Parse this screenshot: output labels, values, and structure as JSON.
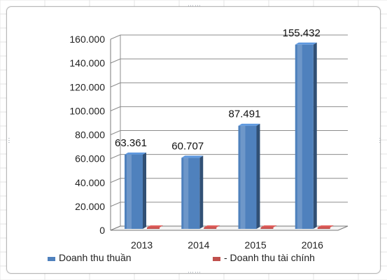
{
  "chart_data": {
    "type": "bar",
    "categories": [
      "2013",
      "2014",
      "2015",
      "2016"
    ],
    "series": [
      {
        "name": "Doanh thu thuần",
        "values": [
          63361,
          60707,
          87491,
          155432
        ],
        "color": "#4f81bd"
      },
      {
        "name": "- Doanh thu tài chính",
        "values": [
          0,
          0,
          0,
          0
        ],
        "color": "#c0504d"
      }
    ],
    "data_labels": [
      "63.361",
      "60.707",
      "87.491",
      "155.432"
    ],
    "y_ticks": [
      "0",
      "20.000",
      "40.000",
      "60.000",
      "80.000",
      "100.000",
      "120.000",
      "140.000",
      "160.000"
    ],
    "ylim": [
      0,
      160000
    ],
    "title": "",
    "xlabel": "",
    "ylabel": "",
    "grid": true,
    "legend_position": "bottom",
    "style": "3d-clustered-column"
  }
}
